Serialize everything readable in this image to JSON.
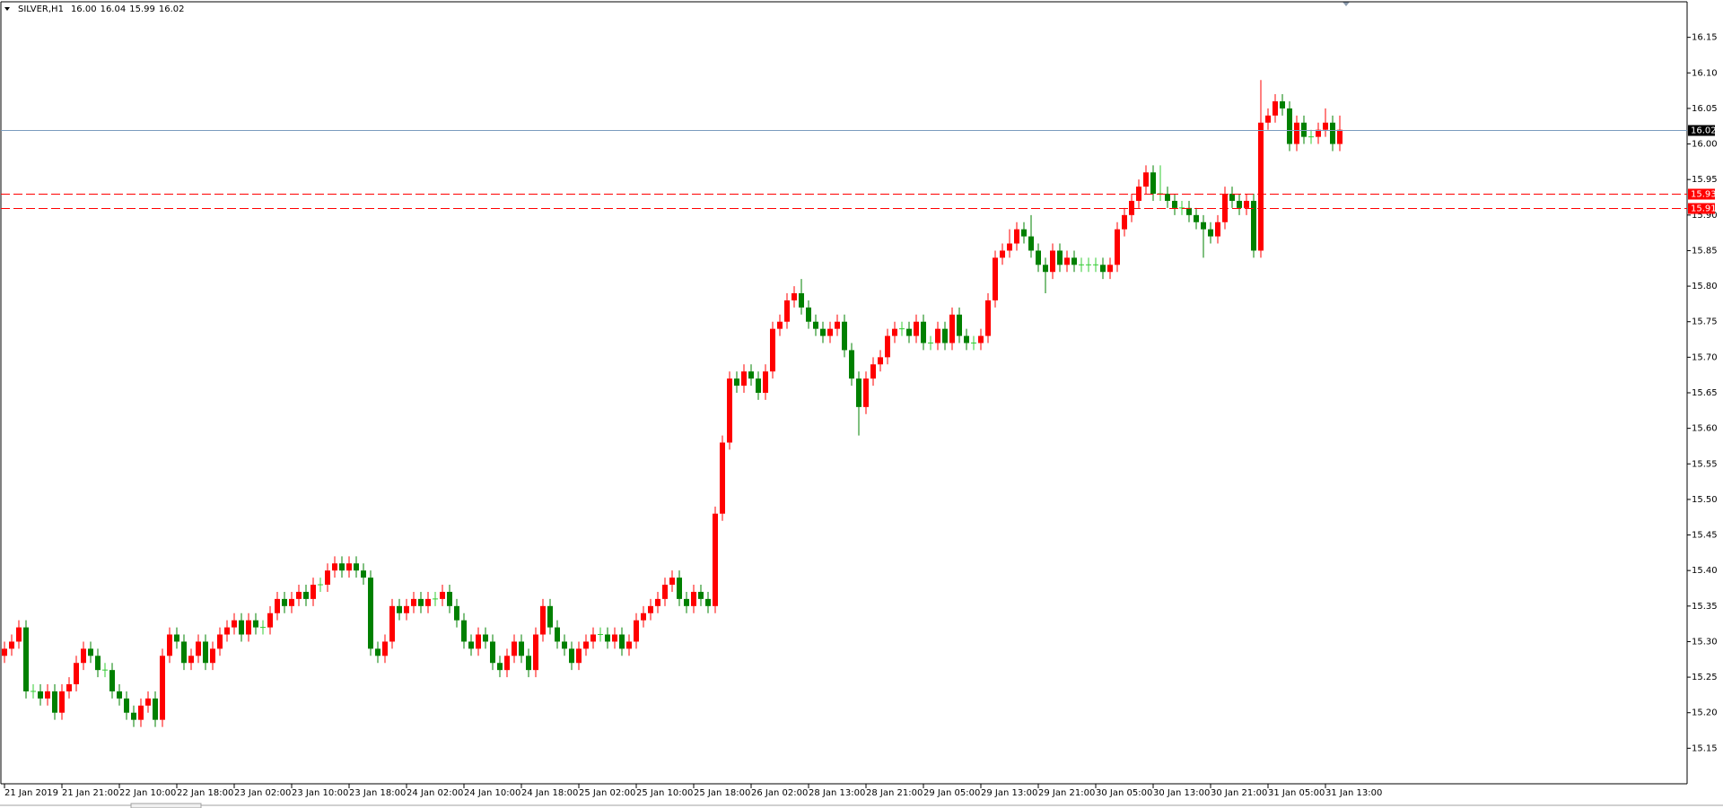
{
  "chart_data": {
    "type": "candlestick",
    "title": "SILVER,H1",
    "header_values": [
      "16.00",
      "16.04",
      "15.99",
      "16.02"
    ],
    "up_color": "#ff0000",
    "down_color": "#008000",
    "doji_color": "#33cc33",
    "xlim": [
      0,
      234
    ],
    "ylim": [
      15.1,
      16.2
    ],
    "yticks": [
      15.15,
      {
        "value": 15.2,
        "label": "15.20"
      },
      15.25,
      {
        "value": 15.3,
        "label": "15.30"
      },
      15.35,
      {
        "value": 15.4,
        "label": "15.40"
      },
      15.45,
      {
        "value": 15.5,
        "label": "15.50"
      },
      15.55,
      {
        "value": 15.6,
        "label": "15.60"
      },
      15.65,
      {
        "value": 15.7,
        "label": "15.70"
      },
      15.75,
      {
        "value": 15.8,
        "label": "15.80"
      },
      15.85,
      {
        "value": 15.9,
        "label": "15.90"
      },
      15.95,
      {
        "value": 16.0,
        "label": "16.00"
      },
      16.05,
      {
        "value": 16.1,
        "label": "16.10"
      },
      16.15
    ],
    "xticks": [
      {
        "value": 0,
        "label": "21 Jan 2019"
      },
      {
        "value": 8,
        "label": "21 Jan 21:00"
      },
      {
        "value": 16,
        "label": "22 Jan 10:00"
      },
      {
        "value": 24,
        "label": "22 Jan 18:00"
      },
      {
        "value": 32,
        "label": "23 Jan 02:00"
      },
      {
        "value": 40,
        "label": "23 Jan 10:00"
      },
      {
        "value": 48,
        "label": "23 Jan 18:00"
      },
      {
        "value": 56,
        "label": "24 Jan 02:00"
      },
      {
        "value": 64,
        "label": "24 Jan 10:00"
      },
      {
        "value": 72,
        "label": "24 Jan 18:00"
      },
      {
        "value": 80,
        "label": "25 Jan 02:00"
      },
      {
        "value": 88,
        "label": "25 Jan 10:00"
      },
      {
        "value": 96,
        "label": "25 Jan 18:00"
      },
      {
        "value": 104,
        "label": "26 Jan 02:00"
      },
      {
        "value": 112,
        "label": "28 Jan 13:00"
      },
      {
        "value": 120,
        "label": "28 Jan 21:00"
      },
      {
        "value": 128,
        "label": "29 Jan 05:00"
      },
      {
        "value": 136,
        "label": "29 Jan 13:00"
      },
      {
        "value": 144,
        "label": "29 Jan 21:00"
      },
      {
        "value": 152,
        "label": "30 Jan 05:00"
      },
      {
        "value": 160,
        "label": "30 Jan 13:00"
      },
      {
        "value": 168,
        "label": "30 Jan 21:00"
      },
      {
        "value": 176,
        "label": "31 Jan 05:00"
      },
      {
        "value": 184,
        "label": "31 Jan 13:00"
      }
    ],
    "price_lines": [
      {
        "value": 16.02,
        "color": "#7b9cbf",
        "label_color": "#000000",
        "dashed": false
      },
      {
        "value": 15.93,
        "color": "#ff0000",
        "label_color": "#ff0000",
        "dashed": true
      },
      {
        "value": 15.91,
        "color": "#ff0000",
        "label_color": "#ff0000",
        "dashed": true
      }
    ],
    "open": [
      15.28,
      15.29,
      15.3,
      15.32,
      15.23,
      15.23,
      15.22,
      15.23,
      15.2,
      15.23,
      15.24,
      15.27,
      15.29,
      15.28,
      15.26,
      15.26,
      15.23,
      15.22,
      15.2,
      15.19,
      15.21,
      15.22,
      15.19,
      15.28,
      15.31,
      15.3,
      15.27,
      15.28,
      15.3,
      15.27,
      15.29,
      15.31,
      15.32,
      15.33,
      15.31,
      15.33,
      15.32,
      15.32,
      15.34,
      15.36,
      15.35,
      15.36,
      15.37,
      15.36,
      15.38,
      15.38,
      15.4,
      15.41,
      15.4,
      15.41,
      15.4,
      15.39,
      15.29,
      15.28,
      15.3,
      15.35,
      15.34,
      15.35,
      15.36,
      15.35,
      15.36,
      15.36,
      15.37,
      15.35,
      15.33,
      15.3,
      15.29,
      15.31,
      15.3,
      15.27,
      15.26,
      15.28,
      15.3,
      15.28,
      15.26,
      15.31,
      15.35,
      15.32,
      15.3,
      15.29,
      15.27,
      15.29,
      15.3,
      15.31,
      15.31,
      15.3,
      15.31,
      15.29,
      15.3,
      15.33,
      15.34,
      15.35,
      15.36,
      15.38,
      15.39,
      15.36,
      15.35,
      15.37,
      15.36,
      15.35,
      15.48,
      15.58,
      15.67,
      15.66,
      15.68,
      15.67,
      15.65,
      15.68,
      15.74,
      15.75,
      15.78,
      15.79,
      15.77,
      15.75,
      15.74,
      15.73,
      15.74,
      15.75,
      15.71,
      15.67,
      15.63,
      15.67,
      15.69,
      15.7,
      15.73,
      15.74,
      15.74,
      15.73,
      15.75,
      15.72,
      15.72,
      15.74,
      15.72,
      15.76,
      15.73,
      15.72,
      15.72,
      15.73,
      15.78,
      15.84,
      15.85,
      15.86,
      15.88,
      15.87,
      15.85,
      15.83,
      15.82,
      15.85,
      15.83,
      15.84,
      15.83,
      15.83,
      15.83,
      15.83,
      15.82,
      15.83,
      15.88,
      15.9,
      15.92,
      15.94,
      15.96,
      15.93,
      15.93,
      15.92,
      15.91,
      15.91,
      15.9,
      15.89,
      15.88,
      15.87,
      15.89,
      15.93,
      15.92,
      15.91,
      15.92,
      15.85,
      16.03,
      16.04,
      16.06,
      16.05,
      16.0,
      16.03,
      16.01,
      16.01,
      16.02,
      16.03,
      16.0
    ],
    "high": [
      15.3,
      15.31,
      15.33,
      15.33,
      15.24,
      15.24,
      15.24,
      15.24,
      15.24,
      15.25,
      15.28,
      15.3,
      15.3,
      15.29,
      15.27,
      15.27,
      15.24,
      15.23,
      15.21,
      15.22,
      15.23,
      15.23,
      15.29,
      15.32,
      15.32,
      15.31,
      15.29,
      15.31,
      15.31,
      15.3,
      15.32,
      15.33,
      15.34,
      15.34,
      15.34,
      15.34,
      15.33,
      15.35,
      15.37,
      15.37,
      15.37,
      15.38,
      15.38,
      15.39,
      15.39,
      15.41,
      15.42,
      15.42,
      15.42,
      15.42,
      15.41,
      15.4,
      15.3,
      15.31,
      15.36,
      15.36,
      15.36,
      15.37,
      15.37,
      15.37,
      15.37,
      15.38,
      15.38,
      15.36,
      15.34,
      15.31,
      15.32,
      15.32,
      15.31,
      15.28,
      15.29,
      15.31,
      15.31,
      15.29,
      15.32,
      15.36,
      15.36,
      15.33,
      15.31,
      15.3,
      15.3,
      15.31,
      15.32,
      15.32,
      15.32,
      15.32,
      15.32,
      15.31,
      15.34,
      15.35,
      15.36,
      15.37,
      15.39,
      15.4,
      15.4,
      15.37,
      15.38,
      15.38,
      15.37,
      15.49,
      15.59,
      15.68,
      15.68,
      15.69,
      15.69,
      15.68,
      15.69,
      15.75,
      15.76,
      15.79,
      15.8,
      15.81,
      15.78,
      15.76,
      15.75,
      15.75,
      15.76,
      15.76,
      15.72,
      15.68,
      15.68,
      15.7,
      15.71,
      15.74,
      15.75,
      15.75,
      15.75,
      15.76,
      15.76,
      15.73,
      15.75,
      15.75,
      15.77,
      15.77,
      15.74,
      15.73,
      15.74,
      15.79,
      15.85,
      15.86,
      15.88,
      15.89,
      15.89,
      15.9,
      15.86,
      15.84,
      15.86,
      15.86,
      15.85,
      15.85,
      15.84,
      15.84,
      15.84,
      15.84,
      15.84,
      15.89,
      15.91,
      15.93,
      15.95,
      15.97,
      15.97,
      15.97,
      15.94,
      15.93,
      15.92,
      15.92,
      15.91,
      15.9,
      15.89,
      15.9,
      15.94,
      15.94,
      15.93,
      15.93,
      15.93,
      16.09,
      16.05,
      16.07,
      16.07,
      16.06,
      16.04,
      16.04,
      16.02,
      16.03,
      16.05,
      16.04,
      16.04
    ],
    "low": [
      15.27,
      15.28,
      15.29,
      15.22,
      15.22,
      15.21,
      15.21,
      15.19,
      15.19,
      15.22,
      15.23,
      15.26,
      15.27,
      15.25,
      15.25,
      15.22,
      15.21,
      15.19,
      15.18,
      15.18,
      15.2,
      15.18,
      15.18,
      15.27,
      15.29,
      15.26,
      15.26,
      15.27,
      15.26,
      15.26,
      15.28,
      15.3,
      15.31,
      15.3,
      15.3,
      15.31,
      15.31,
      15.31,
      15.33,
      15.34,
      15.34,
      15.35,
      15.35,
      15.35,
      15.37,
      15.37,
      15.39,
      15.39,
      15.39,
      15.39,
      15.38,
      15.28,
      15.27,
      15.27,
      15.29,
      15.33,
      15.33,
      15.34,
      15.34,
      15.34,
      15.35,
      15.35,
      15.34,
      15.32,
      15.29,
      15.28,
      15.28,
      15.29,
      15.26,
      15.25,
      15.25,
      15.27,
      15.27,
      15.25,
      15.25,
      15.3,
      15.31,
      15.29,
      15.28,
      15.26,
      15.26,
      15.28,
      15.29,
      15.3,
      15.29,
      15.29,
      15.28,
      15.28,
      15.29,
      15.32,
      15.33,
      15.34,
      15.35,
      15.37,
      15.35,
      15.34,
      15.34,
      15.35,
      15.34,
      15.34,
      15.47,
      15.57,
      15.65,
      15.65,
      15.66,
      15.64,
      15.64,
      15.67,
      15.73,
      15.74,
      15.77,
      15.76,
      15.74,
      15.73,
      15.72,
      15.72,
      15.73,
      15.7,
      15.66,
      15.59,
      15.62,
      15.66,
      15.68,
      15.69,
      15.72,
      15.73,
      15.72,
      15.72,
      15.71,
      15.71,
      15.71,
      15.71,
      15.71,
      15.72,
      15.71,
      15.71,
      15.71,
      15.72,
      15.77,
      15.83,
      15.84,
      15.85,
      15.86,
      15.84,
      15.82,
      15.79,
      15.81,
      15.82,
      15.82,
      15.82,
      15.82,
      15.82,
      15.82,
      15.81,
      15.81,
      15.82,
      15.87,
      15.89,
      15.91,
      15.93,
      15.92,
      15.92,
      15.91,
      15.9,
      15.9,
      15.89,
      15.88,
      15.84,
      15.86,
      15.86,
      15.88,
      15.91,
      15.9,
      15.9,
      15.84,
      15.84,
      16.02,
      16.03,
      16.04,
      15.99,
      15.99,
      16.0,
      16.0,
      16.0,
      16.01,
      15.99,
      15.99
    ],
    "close": [
      15.29,
      15.3,
      15.32,
      15.23,
      15.23,
      15.22,
      15.23,
      15.2,
      15.23,
      15.24,
      15.27,
      15.29,
      15.28,
      15.26,
      15.26,
      15.23,
      15.22,
      15.2,
      15.19,
      15.21,
      15.22,
      15.19,
      15.28,
      15.31,
      15.3,
      15.27,
      15.28,
      15.3,
      15.27,
      15.29,
      15.31,
      15.32,
      15.33,
      15.31,
      15.33,
      15.32,
      15.32,
      15.34,
      15.36,
      15.35,
      15.36,
      15.37,
      15.36,
      15.38,
      15.38,
      15.4,
      15.41,
      15.4,
      15.41,
      15.4,
      15.39,
      15.29,
      15.28,
      15.3,
      15.35,
      15.34,
      15.35,
      15.36,
      15.35,
      15.36,
      15.36,
      15.37,
      15.35,
      15.33,
      15.3,
      15.29,
      15.31,
      15.3,
      15.27,
      15.26,
      15.28,
      15.3,
      15.28,
      15.26,
      15.31,
      15.35,
      15.32,
      15.3,
      15.29,
      15.27,
      15.29,
      15.3,
      15.31,
      15.31,
      15.3,
      15.31,
      15.29,
      15.3,
      15.33,
      15.34,
      15.35,
      15.36,
      15.38,
      15.39,
      15.36,
      15.35,
      15.37,
      15.36,
      15.35,
      15.48,
      15.58,
      15.67,
      15.66,
      15.68,
      15.67,
      15.65,
      15.68,
      15.74,
      15.75,
      15.78,
      15.79,
      15.77,
      15.75,
      15.74,
      15.73,
      15.74,
      15.75,
      15.71,
      15.67,
      15.63,
      15.67,
      15.69,
      15.7,
      15.73,
      15.74,
      15.74,
      15.73,
      15.75,
      15.72,
      15.72,
      15.74,
      15.72,
      15.76,
      15.73,
      15.72,
      15.72,
      15.73,
      15.78,
      15.84,
      15.85,
      15.86,
      15.88,
      15.87,
      15.85,
      15.83,
      15.82,
      15.85,
      15.83,
      15.84,
      15.83,
      15.83,
      15.83,
      15.83,
      15.82,
      15.83,
      15.88,
      15.9,
      15.92,
      15.94,
      15.96,
      15.93,
      15.93,
      15.92,
      15.91,
      15.91,
      15.9,
      15.89,
      15.88,
      15.87,
      15.89,
      15.93,
      15.92,
      15.91,
      15.92,
      15.85,
      16.03,
      16.04,
      16.06,
      16.05,
      16.0,
      16.03,
      16.01,
      16.01,
      16.02,
      16.03,
      16.0,
      16.02
    ]
  }
}
